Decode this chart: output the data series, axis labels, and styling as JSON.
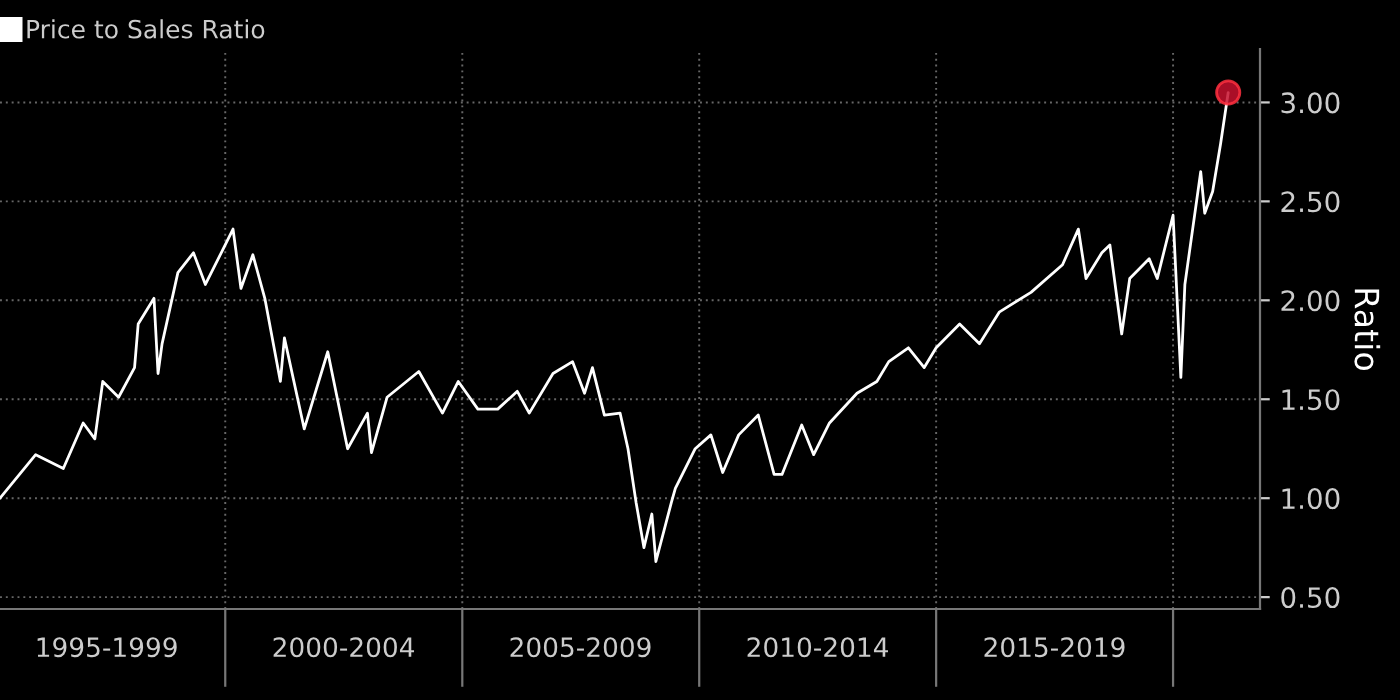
{
  "chart_data": {
    "type": "line",
    "ylabel": "Ratio",
    "xlim": [
      "1995-04",
      "2021-11"
    ],
    "ylim": [
      0.44,
      3.27
    ],
    "xticks": [
      {
        "value": "2000",
        "label": null
      },
      {
        "value": "2005",
        "label": null
      },
      {
        "value": "2010",
        "label": null
      },
      {
        "value": "2015",
        "label": null
      },
      {
        "value": "2020",
        "label": null
      },
      {
        "value": "1997-07",
        "label": "1995-1999"
      },
      {
        "value": "2002-07",
        "label": "2000-2004"
      },
      {
        "value": "2007-07",
        "label": "2005-2009"
      },
      {
        "value": "2012-07",
        "label": "2010-2014"
      },
      {
        "value": "2017-07",
        "label": "2015-2019"
      }
    ],
    "yticks": [
      {
        "value": 0.5,
        "label": "0.50"
      },
      {
        "value": 1.0,
        "label": "1.00"
      },
      {
        "value": 1.5,
        "label": "1.50"
      },
      {
        "value": 2.0,
        "label": "2.00"
      },
      {
        "value": 2.5,
        "label": "2.50"
      },
      {
        "value": 3.0,
        "label": "3.00"
      }
    ],
    "grid": true,
    "legend": "top left",
    "series": [
      {
        "name": "Price to Sales Ratio",
        "color": "#ffffff",
        "x": [
          "1995-04",
          "1996-01",
          "1996-08",
          "1997-01",
          "1997-04",
          "1997-06",
          "1997-10",
          "1998-02",
          "1998-03",
          "1998-07",
          "1998-08",
          "1998-09",
          "1999-01",
          "1999-05",
          "1999-08",
          "1999-12",
          "2000-03",
          "2000-05",
          "2000-08",
          "2000-11",
          "2001-03",
          "2001-04",
          "2001-09",
          "2002-03",
          "2002-08",
          "2003-01",
          "2003-02",
          "2003-06",
          "2004-02",
          "2004-08",
          "2004-12",
          "2005-05",
          "2005-10",
          "2006-03",
          "2006-06",
          "2006-12",
          "2007-05",
          "2007-08",
          "2007-10",
          "2008-01",
          "2008-05",
          "2008-07",
          "2008-09",
          "2008-11",
          "2009-01",
          "2009-02",
          "2009-06",
          "2009-07",
          "2009-12",
          "2010-04",
          "2010-07",
          "2010-11",
          "2011-04",
          "2011-08",
          "2011-10",
          "2012-03",
          "2012-06",
          "2012-10",
          "2013-05",
          "2013-10",
          "2014-01",
          "2014-06",
          "2014-10",
          "2015-01",
          "2015-07",
          "2015-12",
          "2016-05",
          "2017-01",
          "2017-09",
          "2018-01",
          "2018-03",
          "2018-07",
          "2018-09",
          "2018-12",
          "2019-02",
          "2019-07",
          "2019-09",
          "2020-01",
          "2020-03",
          "2020-04",
          "2020-08",
          "2020-09",
          "2020-11",
          "2021-01",
          "2021-03"
        ],
        "values": [
          1.0,
          1.22,
          1.15,
          1.38,
          1.3,
          1.59,
          1.51,
          1.66,
          1.88,
          2.01,
          1.63,
          1.78,
          2.14,
          2.24,
          2.08,
          2.24,
          2.36,
          2.06,
          2.23,
          2.01,
          1.59,
          1.81,
          1.35,
          1.74,
          1.25,
          1.43,
          1.23,
          1.51,
          1.64,
          1.43,
          1.59,
          1.45,
          1.45,
          1.54,
          1.43,
          1.63,
          1.69,
          1.53,
          1.66,
          1.42,
          1.43,
          1.25,
          0.98,
          0.75,
          0.92,
          0.68,
          0.98,
          1.05,
          1.25,
          1.32,
          1.13,
          1.32,
          1.42,
          1.12,
          1.12,
          1.37,
          1.22,
          1.38,
          1.53,
          1.59,
          1.69,
          1.76,
          1.66,
          1.76,
          1.88,
          1.78,
          1.94,
          2.04,
          2.18,
          2.36,
          2.11,
          2.24,
          2.28,
          1.83,
          2.11,
          2.21,
          2.11,
          2.43,
          1.61,
          2.08,
          2.65,
          2.44,
          2.55,
          2.79,
          3.05
        ]
      },
      {
        "color": "#c8102e",
        "type": "scatter",
        "marker": "circle",
        "x": [
          "2021-03"
        ],
        "values": [
          3.05
        ]
      }
    ]
  }
}
